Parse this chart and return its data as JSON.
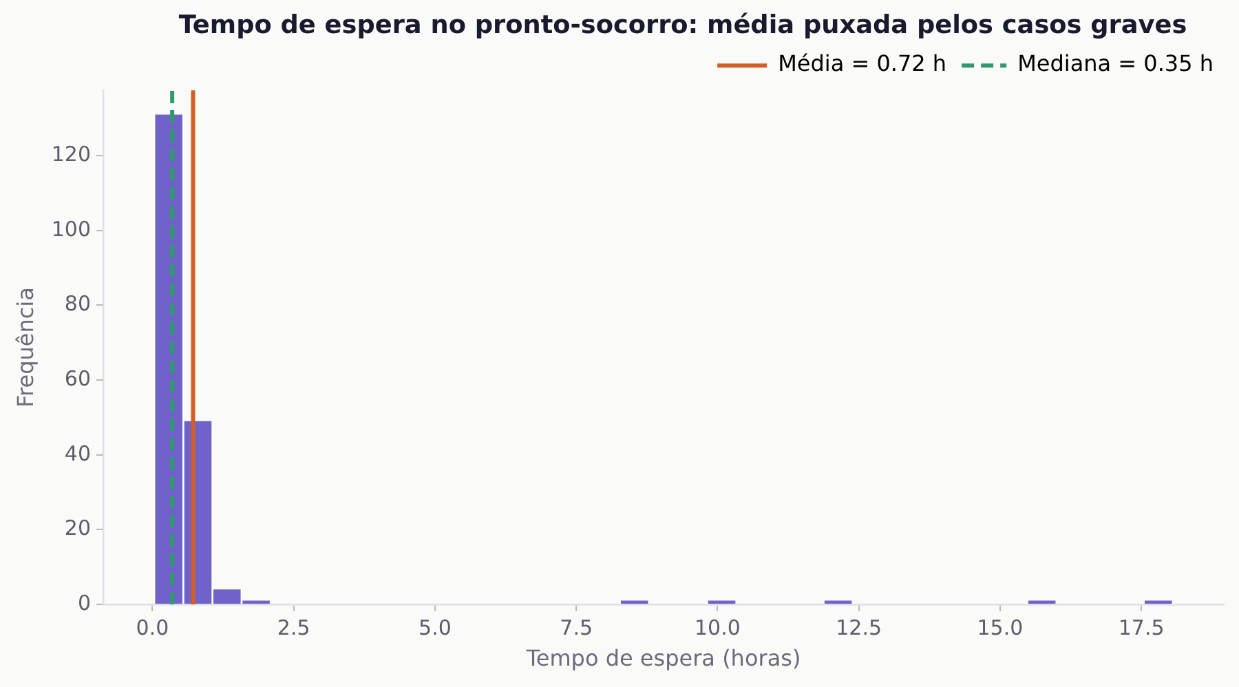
{
  "chart_data": {
    "type": "histogram",
    "title": "Tempo de espera no pronto-socorro: média puxada pelos casos graves",
    "xlabel": "Tempo de espera (horas)",
    "ylabel": "Frequência",
    "bins": [
      0.03,
      0.55,
      1.06,
      1.58,
      2.09,
      2.61,
      3.12,
      3.64,
      4.15,
      4.67,
      5.18,
      5.7,
      6.21,
      6.73,
      7.24,
      7.76,
      8.27,
      8.79,
      9.3,
      9.82,
      10.33,
      10.85,
      11.36,
      11.88,
      12.39,
      12.91,
      13.42,
      13.94,
      14.45,
      14.97,
      15.48,
      16,
      16.51,
      17.03,
      17.54,
      18.06
    ],
    "values": [
      131,
      49,
      4,
      1,
      0,
      0,
      0,
      0,
      0,
      0,
      0,
      0,
      0,
      0,
      0,
      0,
      1,
      0,
      0,
      1,
      0,
      0,
      0,
      1,
      0,
      0,
      0,
      0,
      0,
      0,
      1,
      0,
      0,
      0,
      1
    ],
    "color": "#6f63c9",
    "xlim": [
      -0.87,
      18.96
    ],
    "ylim": [
      0,
      137.5
    ],
    "xticks": [
      {
        "value": 0,
        "label": "0.0"
      },
      2.5,
      {
        "value": 5,
        "label": "5.0"
      },
      7.5,
      {
        "value": 10,
        "label": "10.0"
      },
      12.5,
      {
        "value": 15,
        "label": "15.0"
      },
      17.5
    ],
    "yticks": [
      0,
      20,
      40,
      60,
      80,
      100,
      120
    ],
    "ref_lines": [
      {
        "axis": "x",
        "value": 0.72,
        "label": "Média = 0.72 h",
        "color": "#d35f25",
        "line_style": "solid"
      },
      {
        "axis": "x",
        "value": 0.35,
        "label": "Mediana = 0.35 h",
        "color": "#2e9a6e",
        "line_style": "dashed"
      }
    ],
    "legend": "top right"
  }
}
